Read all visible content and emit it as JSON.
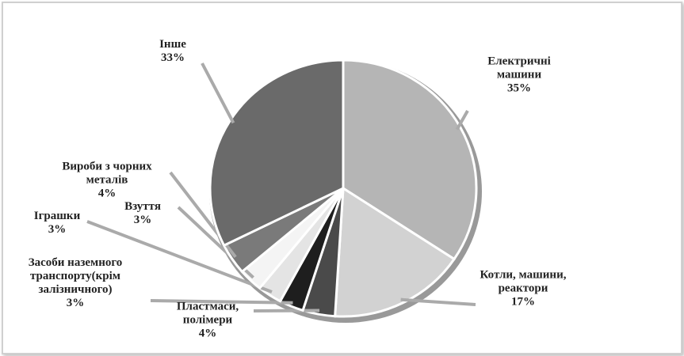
{
  "chart_data": {
    "type": "pie",
    "categories": [
      "Електричні машини",
      "Котли, машини, реактори",
      "Пластмаси, полімери",
      "Засоби наземного транспорту(крім залізничного)",
      "Іграшки",
      "Взуття",
      "Вироби з чорних металів",
      "Інше"
    ],
    "values": [
      35,
      17,
      4,
      3,
      3,
      3,
      4,
      33
    ],
    "value_labels": [
      "35%",
      "17%",
      "4%",
      "3%",
      "3%",
      "3%",
      "4%",
      "33%"
    ],
    "colors": [
      "#b5b5b5",
      "#d2d2d2",
      "#4a4a4a",
      "#1e1e1e",
      "#e4e4e4",
      "#f4f4f4",
      "#7a7a7a",
      "#6a6a6a"
    ]
  }
}
